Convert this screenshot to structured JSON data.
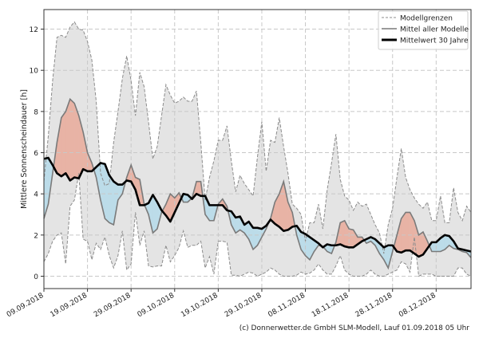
{
  "chart_data": {
    "type": "area",
    "ylabel": "Mittlere Sonnenscheindauer [h]",
    "xlabel": "",
    "ylim": [
      -0.6,
      12.95
    ],
    "xlim": [
      "2018-09-09",
      "2018-12-16"
    ],
    "grid": true,
    "grid_style": "dashed",
    "legend_position": "top-right",
    "x_start": "2018-09-09",
    "x_step": "1 day",
    "x_ticks": [
      "09.09.2018",
      "19.09.2018",
      "29.09.2018",
      "09.10.2018",
      "19.10.2018",
      "29.10.2018",
      "08.11.2018",
      "18.11.2018",
      "28.11.2018",
      "08.12.2018"
    ],
    "y_ticks": [
      0,
      2,
      4,
      6,
      8,
      10,
      12
    ],
    "legend": [
      "Modellgrenzen",
      "Mittel aller Modelle",
      "Mittelwert 30 Jahre"
    ],
    "series": [
      {
        "name": "Modellgrenzen",
        "role": "upper",
        "values": [
          4.6,
          6.8,
          9.5,
          11.6,
          11.7,
          11.6,
          12.1,
          12.35,
          12.0,
          11.95,
          11.4,
          10.5,
          8.5,
          5.0,
          4.4,
          4.5,
          6.5,
          8.0,
          9.6,
          10.7,
          9.5,
          7.8,
          9.9,
          9.2,
          7.5,
          5.7,
          6.3,
          7.8,
          9.3,
          8.8,
          8.4,
          8.5,
          8.7,
          8.5,
          8.5,
          9.0,
          6.5,
          3.7,
          4.8,
          5.6,
          6.6,
          6.6,
          7.3,
          5.6,
          4.1,
          4.9,
          4.5,
          4.2,
          3.9,
          5.8,
          7.5,
          5.1,
          6.6,
          6.5,
          7.7,
          6.3,
          5.0,
          3.5,
          3.3,
          3.0,
          1.7,
          2.6,
          2.6,
          3.5,
          2.3,
          4.2,
          5.5,
          6.9,
          4.7,
          3.9,
          3.7,
          3.2,
          3.6,
          3.4,
          3.5,
          3.0,
          2.5,
          2.1,
          1.1,
          2.5,
          3.3,
          4.8,
          6.2,
          4.8,
          4.2,
          3.8,
          3.5,
          3.3,
          3.6,
          2.7,
          2.7,
          3.9,
          2.6,
          2.6,
          4.3,
          3.1,
          2.7,
          3.4,
          3.1
        ]
      },
      {
        "name": "Modellgrenzen",
        "role": "lower",
        "values": [
          0.7,
          1.1,
          1.7,
          2.0,
          2.1,
          0.6,
          3.4,
          3.7,
          5.0,
          1.8,
          1.7,
          0.8,
          1.6,
          1.3,
          1.9,
          1.0,
          0.4,
          1.0,
          2.2,
          0.3,
          0.6,
          3.1,
          1.5,
          2.2,
          0.5,
          0.45,
          0.5,
          0.5,
          1.5,
          0.7,
          1.0,
          1.4,
          2.2,
          1.4,
          1.5,
          1.5,
          1.7,
          0.4,
          0.95,
          0.1,
          1.7,
          1.7,
          1.65,
          0.05,
          0.05,
          0.0,
          0.1,
          0.2,
          0.15,
          0.0,
          0.1,
          0.2,
          0.4,
          0.3,
          0.1,
          0.0,
          0.0,
          0.0,
          0.05,
          0.2,
          0.1,
          0.15,
          0.3,
          0.6,
          0.3,
          0.1,
          0.1,
          0.5,
          1.0,
          0.3,
          0.1,
          0.0,
          0.0,
          0.0,
          0.1,
          0.3,
          0.1,
          0.0,
          0.0,
          0.1,
          0.2,
          0.3,
          0.7,
          0.6,
          0.2,
          1.9,
          0.0,
          0.1,
          0.1,
          0.1,
          0.0,
          0.0,
          0.0,
          0.0,
          0.0,
          0.4,
          0.4,
          0.1,
          0.0
        ]
      },
      {
        "name": "Mittel aller Modelle",
        "values": [
          2.8,
          3.5,
          5.0,
          6.5,
          7.7,
          8.0,
          8.6,
          8.4,
          7.8,
          7.0,
          6.0,
          5.5,
          4.8,
          3.7,
          2.8,
          2.6,
          2.5,
          3.7,
          4.0,
          4.8,
          5.4,
          4.8,
          4.7,
          3.5,
          3.0,
          2.1,
          2.3,
          3.1,
          3.5,
          4.0,
          3.8,
          4.05,
          3.6,
          3.6,
          3.8,
          4.6,
          4.6,
          3.0,
          2.7,
          2.7,
          3.5,
          3.75,
          3.4,
          2.5,
          2.1,
          2.25,
          2.1,
          1.8,
          1.3,
          1.5,
          1.9,
          2.3,
          2.8,
          3.6,
          4.0,
          4.6,
          3.6,
          3.1,
          2.0,
          1.3,
          1.0,
          0.8,
          1.2,
          1.5,
          1.45,
          1.2,
          1.1,
          1.65,
          2.6,
          2.7,
          2.3,
          2.25,
          1.9,
          1.9,
          1.6,
          1.7,
          1.5,
          1.1,
          0.8,
          0.4,
          1.2,
          2.0,
          2.8,
          3.1,
          3.1,
          2.7,
          2.0,
          2.15,
          1.7,
          1.2,
          1.2,
          1.2,
          1.3,
          1.5,
          1.35,
          1.3,
          1.2,
          1.15,
          0.9
        ]
      },
      {
        "name": "Mittelwert 30 Jahre",
        "values": [
          5.7,
          5.75,
          5.4,
          5.0,
          4.85,
          5.0,
          4.65,
          4.8,
          4.75,
          5.2,
          5.1,
          5.1,
          5.3,
          5.5,
          5.45,
          4.9,
          4.6,
          4.45,
          4.45,
          4.65,
          4.6,
          4.2,
          3.45,
          3.45,
          3.55,
          3.95,
          3.6,
          3.2,
          2.95,
          2.65,
          3.1,
          3.55,
          4.0,
          3.95,
          3.75,
          4.0,
          3.9,
          3.9,
          3.45,
          3.45,
          3.45,
          3.45,
          3.2,
          3.15,
          2.85,
          2.9,
          2.5,
          2.65,
          2.35,
          2.35,
          2.3,
          2.45,
          2.75,
          2.55,
          2.4,
          2.2,
          2.25,
          2.4,
          2.45,
          2.15,
          2.05,
          1.9,
          1.75,
          1.6,
          1.4,
          1.55,
          1.5,
          1.5,
          1.55,
          1.45,
          1.4,
          1.4,
          1.55,
          1.7,
          1.8,
          1.9,
          1.8,
          1.6,
          1.4,
          1.5,
          1.5,
          1.2,
          1.15,
          1.25,
          1.25,
          1.1,
          0.95,
          1.05,
          1.35,
          1.65,
          1.65,
          1.85,
          2.0,
          1.95,
          1.7,
          1.35,
          1.3,
          1.25,
          1.2
        ]
      }
    ],
    "colors": {
      "band": "#e4e4e4",
      "band_edge": "#8c8c8c",
      "model_mean": "#7a7a7a",
      "climate_mean": "#000000",
      "above_mean": "#e8b3a5",
      "below_mean": "#bcdce9",
      "grid": "#c8c8c8"
    }
  },
  "footer": "(c) Donnerwetter.de GmbH SLM-Modell, Lauf 01.09.2018 05 Uhr"
}
